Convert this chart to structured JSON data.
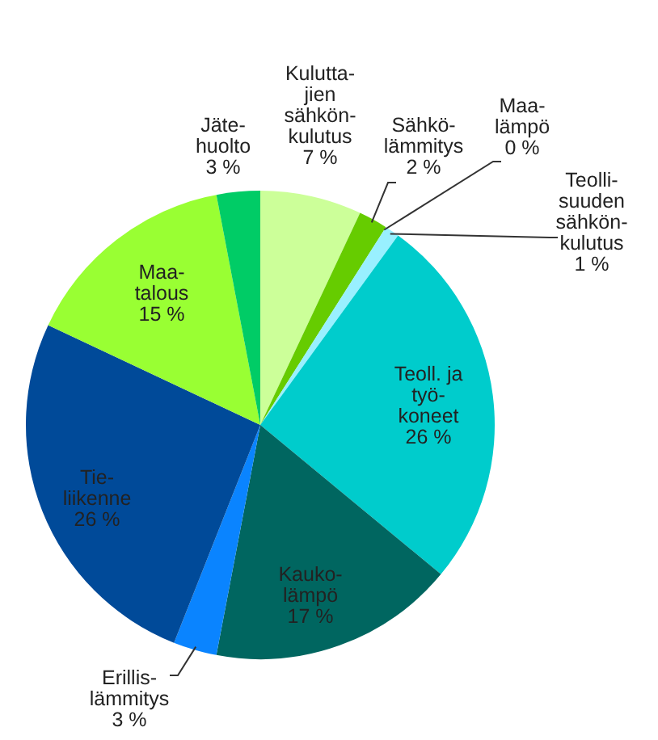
{
  "chart_data": {
    "type": "pie",
    "categories": [
      "Kulutta-\njien\nsähkön-\nkulutus",
      "Sähkö-\nlämmitys",
      "Maa-\nlämpö",
      "Teolli-\nsuuden\nsähkön-\nkulutus",
      "Teoll. ja\ntyö-\nkoneet",
      "Kauko-\nlämpö",
      "Erillis-\nlämmitys",
      "Tie-\nliikenne",
      "Maa-\ntalous",
      "Jäte-\nhuolto"
    ],
    "values": [
      7,
      2,
      0,
      1,
      26,
      17,
      3,
      26,
      15,
      3
    ],
    "value_labels": [
      "7 %",
      "2 %",
      "0 %",
      "1 %",
      "26 %",
      "17 %",
      "3 %",
      "26 %",
      "15 %",
      "3 %"
    ],
    "colors": [
      "#ccff99",
      "#66cc00",
      "#aaccee",
      "#99f0ff",
      "#00cccc",
      "#006660",
      "#0a84ff",
      "#004a99",
      "#99ff33",
      "#00cc66"
    ],
    "legend": false
  }
}
